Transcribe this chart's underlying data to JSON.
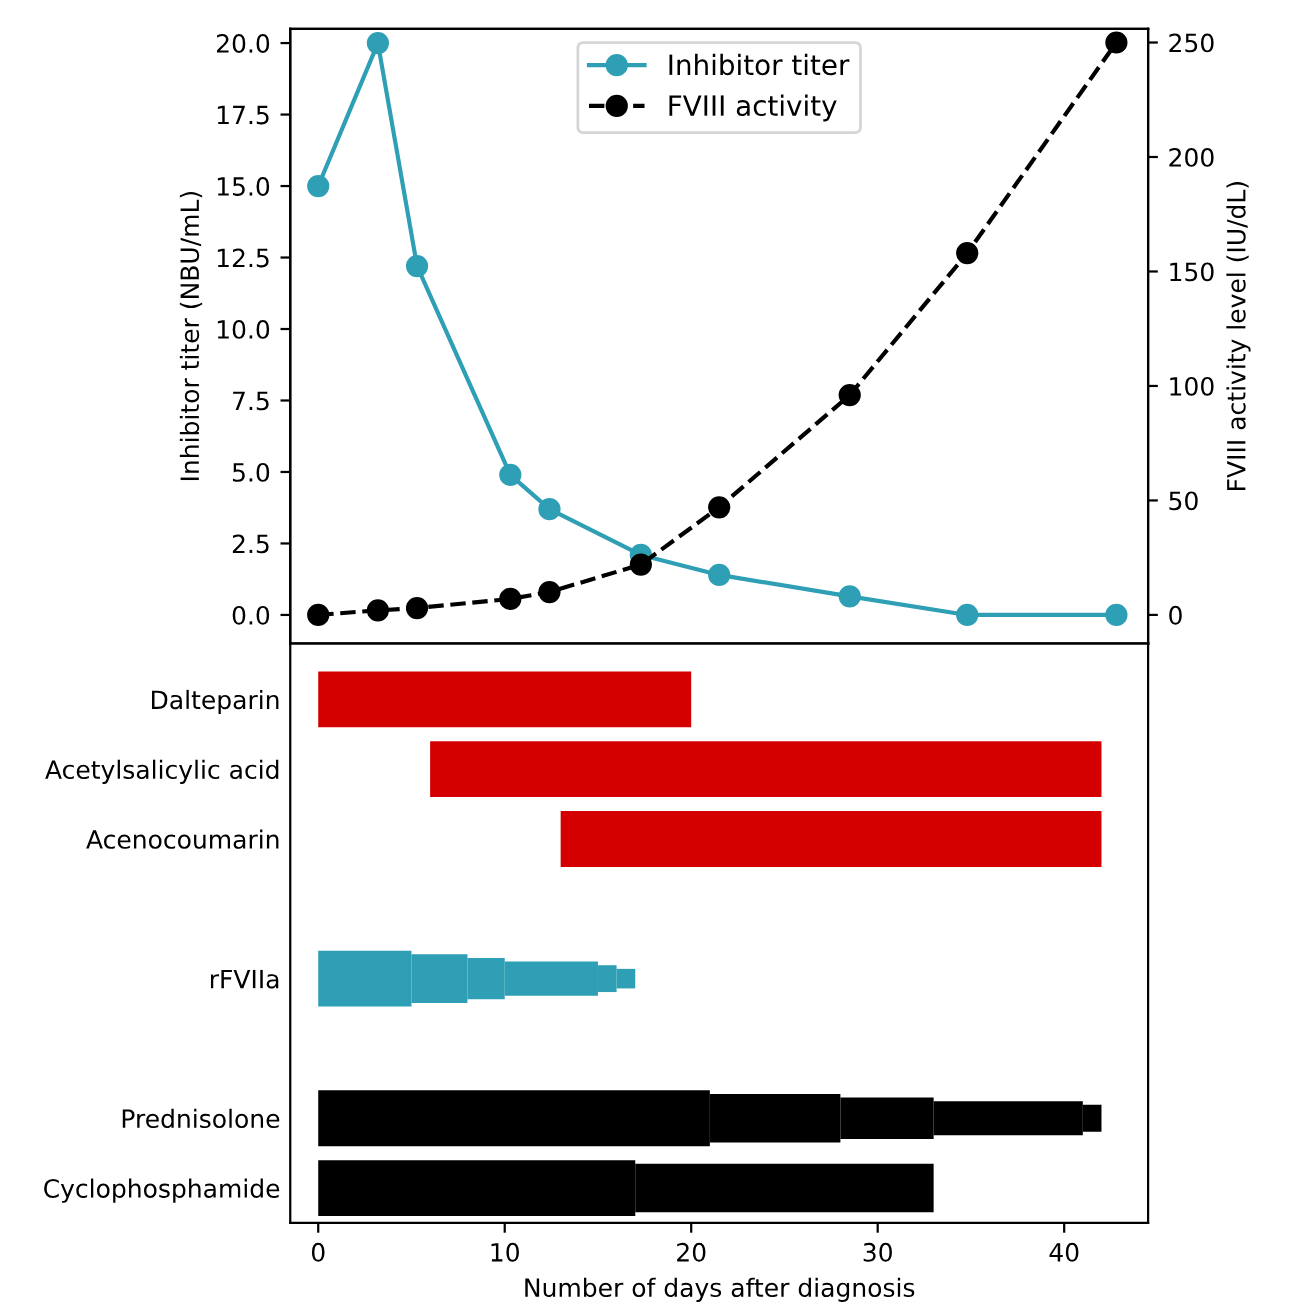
{
  "chart_data": [
    {
      "type": "line",
      "ylabel": "Inhibitor titer (NBU/mL)",
      "y2label": "FVIII activity level (IU/dL)",
      "xlim": [
        -1.5,
        44.5
      ],
      "ylim": [
        -1,
        20.5
      ],
      "yticks": [
        {
          "value": 0,
          "label": "0.0"
        },
        {
          "value": 2.5,
          "label": "2.5"
        },
        {
          "value": 5,
          "label": "5.0"
        },
        {
          "value": 7.5,
          "label": "7.5"
        },
        {
          "value": 10,
          "label": "10.0"
        },
        {
          "value": 12.5,
          "label": "12.5"
        },
        {
          "value": 15,
          "label": "15.0"
        },
        {
          "value": 17.5,
          "label": "17.5"
        },
        {
          "value": 20,
          "label": "20.0"
        }
      ],
      "y2lim": [
        -12.5,
        256
      ],
      "y2ticks": [
        0,
        50,
        100,
        150,
        200,
        250
      ],
      "tick_labels": "y",
      "legend": "top",
      "marker": "circle",
      "series": [
        {
          "name": "Inhibitor titer",
          "color": "#2e9fb5",
          "line_style": "solid",
          "x": [
            0,
            3.2,
            5.3,
            10.3,
            12.4,
            17.3,
            21.5,
            28.5,
            34.8,
            42.8
          ],
          "values": [
            15,
            20,
            12.2,
            4.9,
            3.7,
            2.1,
            1.4,
            0.65,
            0,
            0
          ]
        },
        {
          "name": "FVIII activity",
          "color": "#000000",
          "line_style": "dashed",
          "axis": "y2",
          "x": [
            0,
            3.2,
            5.3,
            10.3,
            12.4,
            17.3,
            21.5,
            28.5,
            34.8,
            42.8
          ],
          "values": [
            0,
            2,
            3,
            7,
            10,
            22,
            47,
            96,
            158,
            250
          ]
        }
      ]
    },
    {
      "type": "bar",
      "orientation": "horizontal",
      "xlabel": "Number of days after diagnosis",
      "xlim": [
        -1.5,
        44.5
      ],
      "xticks": [
        0,
        10,
        20,
        30,
        40
      ],
      "categories": [
        "Dalteparin",
        "Acetylsalicylic acid",
        "Acenocoumarin",
        null,
        "rFVIIa",
        null,
        "Prednisolone",
        "Cyclophosphamide"
      ],
      "series": [
        {
          "base": [
            0,
            6,
            13,
            null,
            0,
            null,
            0,
            0
          ],
          "values": [
            20,
            36,
            29,
            null,
            5,
            null,
            21,
            17
          ],
          "colors": [
            "#d40000",
            "#d40000",
            "#d40000",
            null,
            "#2e9fb5",
            null,
            "#000000",
            "#000000"
          ]
        },
        {
          "base": [
            null,
            null,
            null,
            null,
            5,
            null,
            21,
            17
          ],
          "values": [
            null,
            null,
            null,
            null,
            3,
            null,
            7,
            16
          ],
          "colors": [
            null,
            null,
            null,
            null,
            "#2e9fb5",
            null,
            "#000000",
            "#000000"
          ]
        },
        {
          "base": [
            null,
            null,
            null,
            null,
            8,
            null,
            28,
            null
          ],
          "values": [
            null,
            null,
            null,
            null,
            2,
            null,
            5,
            null
          ],
          "colors": [
            null,
            null,
            null,
            null,
            "#2e9fb5",
            null,
            "#000000",
            null
          ]
        },
        {
          "base": [
            null,
            null,
            null,
            null,
            10,
            null,
            33,
            null
          ],
          "values": [
            null,
            null,
            null,
            null,
            5,
            null,
            8,
            null
          ],
          "colors": [
            null,
            null,
            null,
            null,
            "#2e9fb5",
            null,
            "#000000",
            null
          ]
        },
        {
          "base": [
            null,
            null,
            null,
            null,
            15,
            null,
            41,
            null
          ],
          "values": [
            null,
            null,
            null,
            null,
            1,
            null,
            1,
            null
          ],
          "colors": [
            null,
            null,
            null,
            null,
            "#2e9fb5",
            null,
            "#000000",
            null
          ]
        },
        {
          "base": [
            null,
            null,
            null,
            null,
            16,
            null,
            null,
            null
          ],
          "values": [
            null,
            null,
            null,
            null,
            1,
            null,
            null,
            null
          ],
          "colors": [
            null,
            null,
            null,
            null,
            "#2e9fb5",
            null,
            null,
            null
          ]
        }
      ]
    }
  ]
}
